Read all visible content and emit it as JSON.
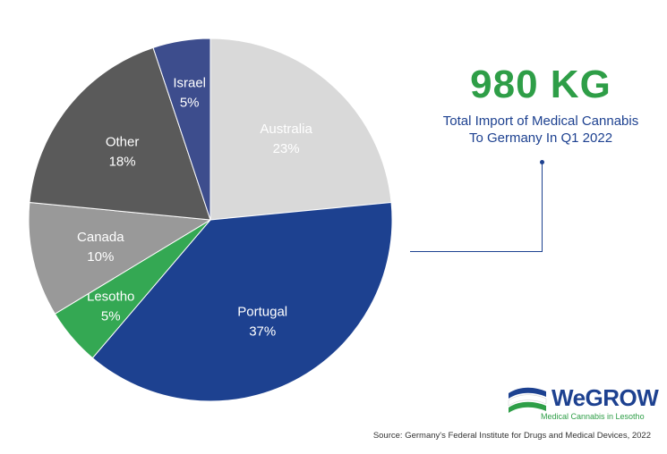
{
  "chart_data": {
    "type": "pie",
    "slices": [
      {
        "label": "Australia",
        "percent_label": "23%",
        "value": 23,
        "color": "#d9d9d9"
      },
      {
        "label": "Portugal",
        "percent_label": "37%",
        "value": 37,
        "color": "#1d4190"
      },
      {
        "label": "Lesotho",
        "percent_label": "5%",
        "value": 5,
        "color": "#34a853"
      },
      {
        "label": "Canada",
        "percent_label": "10%",
        "value": 10,
        "color": "#999999"
      },
      {
        "label": "Other",
        "percent_label": "18%",
        "value": 18,
        "color": "#5a5a5a"
      },
      {
        "label": "Israel",
        "percent_label": "5%",
        "value": 5,
        "color": "#3d4d8d"
      }
    ]
  },
  "headline": {
    "value": "980 KG",
    "line1": "Total Import of Medical Cannabis",
    "line2": "To Germany In Q1 2022"
  },
  "logo": {
    "word": "WeGROW",
    "tagline": "Medical Cannabis in Lesotho"
  },
  "source": "Source: Germany's Federal Institute for Drugs and Medical Devices, 2022",
  "colors": {
    "accent_green": "#2e9e47",
    "accent_blue": "#1d4190"
  }
}
